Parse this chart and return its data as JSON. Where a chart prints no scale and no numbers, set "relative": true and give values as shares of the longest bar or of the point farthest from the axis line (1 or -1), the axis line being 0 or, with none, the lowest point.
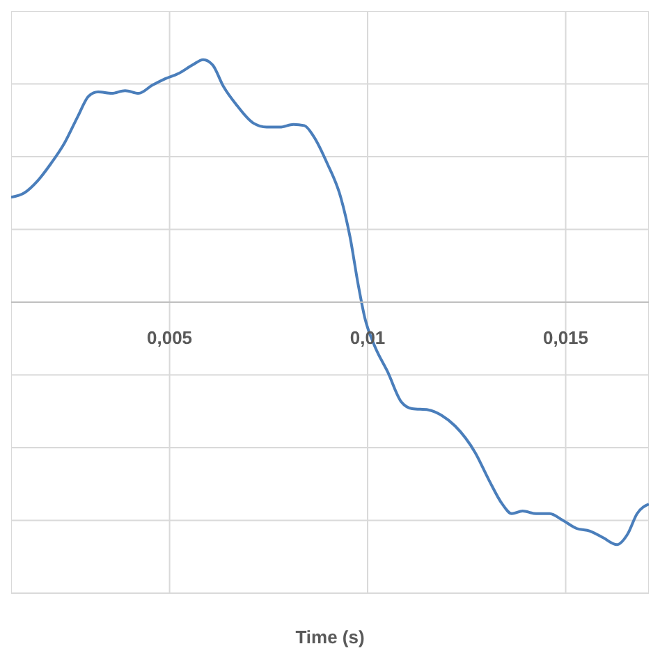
{
  "chart_data": {
    "type": "line",
    "relative": true,
    "xlabel": "Time (s)",
    "xlim": [
      0.001,
      0.0171
    ],
    "xticks": [
      {
        "value": 0.005,
        "label": "0,005"
      },
      {
        "value": 0.01,
        "label": "0,01"
      },
      {
        "value": 0.015,
        "label": "0,015"
      }
    ],
    "grid": true,
    "marker": "none",
    "line_style": "solid",
    "series": [
      {
        "color": "#4a7ebb",
        "x": [
          0.001,
          0.001327,
          0.001667,
          0.002007,
          0.002347,
          0.002687,
          0.002959,
          0.003197,
          0.003537,
          0.003878,
          0.004218,
          0.004558,
          0.004898,
          0.005238,
          0.005578,
          0.00585,
          0.006088,
          0.006361,
          0.006701,
          0.007109,
          0.007449,
          0.007789,
          0.008129,
          0.008401,
          0.008639,
          0.00898,
          0.00932,
          0.009558,
          0.009762,
          0.009932,
          0.01017,
          0.01051,
          0.01085,
          0.011122,
          0.011531,
          0.011871,
          0.012211,
          0.012721,
          0.013061,
          0.013401,
          0.013639,
          0.013912,
          0.014252,
          0.014592,
          0.014932,
          0.015272,
          0.015612,
          0.015952,
          0.016293,
          0.016565,
          0.016803,
          0.0171
        ],
        "values": [
          0.433,
          0.45,
          0.5,
          0.572,
          0.656,
          0.767,
          0.85,
          0.867,
          0.861,
          0.872,
          0.861,
          0.894,
          0.922,
          0.944,
          0.978,
          1,
          0.978,
          0.889,
          0.811,
          0.739,
          0.722,
          0.722,
          0.733,
          0.728,
          0.683,
          0.572,
          0.433,
          0.267,
          0.072,
          -0.067,
          -0.178,
          -0.289,
          -0.411,
          -0.439,
          -0.444,
          -0.467,
          -0.511,
          -0.622,
          -0.733,
          -0.833,
          -0.872,
          -0.861,
          -0.872,
          -0.872,
          -0.9,
          -0.933,
          -0.944,
          -0.972,
          -1,
          -0.956,
          -0.872,
          -0.833
        ]
      }
    ]
  }
}
